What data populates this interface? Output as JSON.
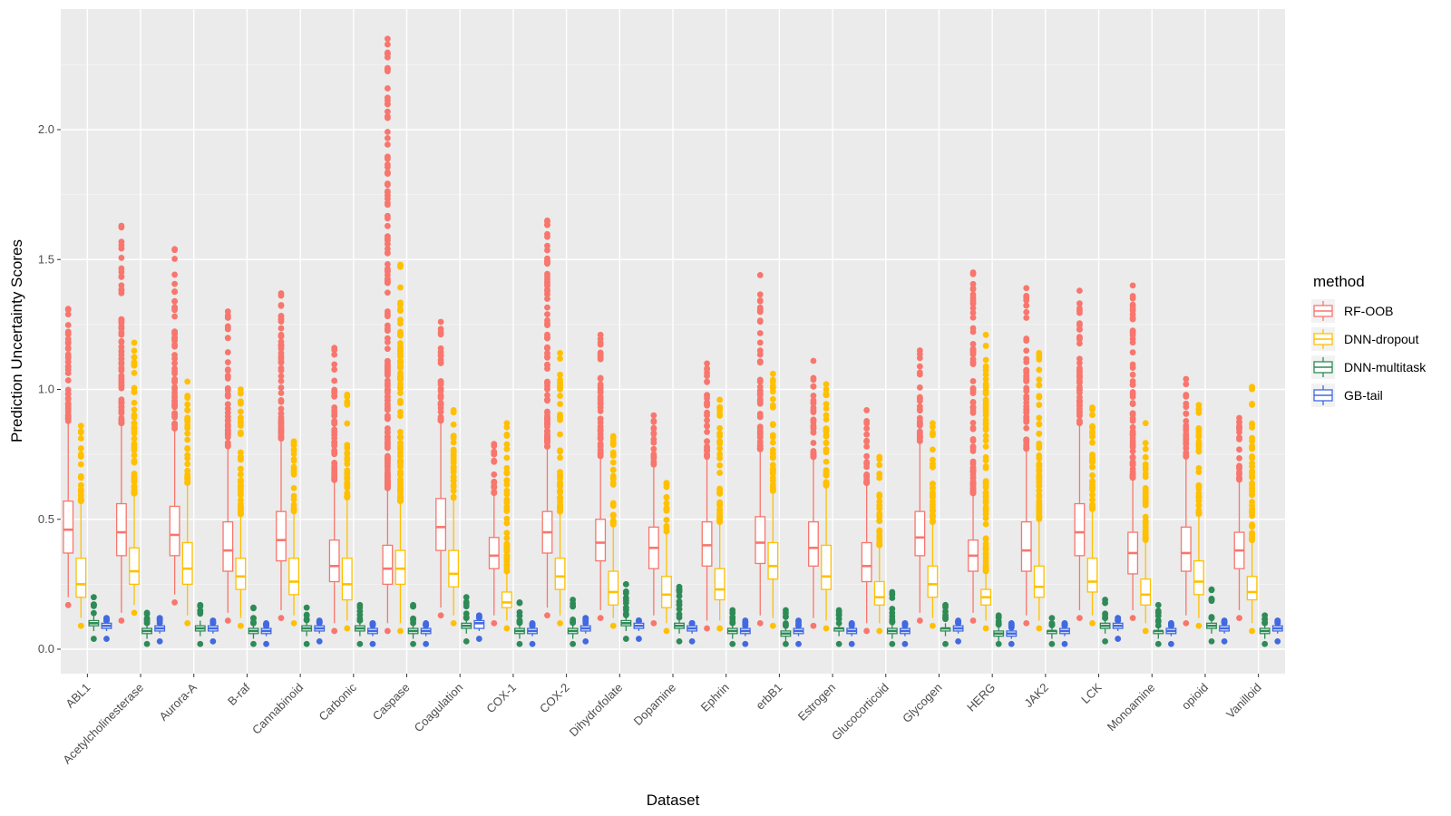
{
  "chart_data": {
    "type": "boxplot",
    "xlabel": "Dataset",
    "ylabel": "Prediction Uncertainty Scores",
    "ylim": [
      -0.1,
      2.43
    ],
    "yticks": [
      0.0,
      0.5,
      1.0,
      1.5,
      2.0
    ],
    "ytick_labels": [
      "0.0",
      "0.5",
      "1.0",
      "1.5",
      "2.0"
    ],
    "legend": {
      "title": "method",
      "position": "right"
    },
    "categories": [
      "ABL1",
      "Acetylcholinesterase",
      "Aurora-A",
      "B-raf",
      "Cannabinoid",
      "Carbonic",
      "Caspase",
      "Coagulation",
      "COX-1",
      "COX-2",
      "Dihydrofolate",
      "Dopamine",
      "Ephrin",
      "erbB1",
      "Estrogen",
      "Glucocorticoid",
      "Glycogen",
      "HERG",
      "JAK2",
      "LCK",
      "Monoamine",
      "opioid",
      "Vanilloid"
    ],
    "series": [
      {
        "name": "RF-OOB",
        "color": "#F8766D",
        "stats": [
          [
            0.2,
            0.37,
            0.46,
            0.57,
            0.87
          ],
          [
            0.14,
            0.36,
            0.45,
            0.56,
            0.87
          ],
          [
            0.21,
            0.36,
            0.44,
            0.55,
            0.85
          ],
          [
            0.14,
            0.3,
            0.38,
            0.49,
            0.78
          ],
          [
            0.15,
            0.34,
            0.42,
            0.53,
            0.81
          ],
          [
            0.1,
            0.26,
            0.32,
            0.42,
            0.65
          ],
          [
            0.1,
            0.25,
            0.31,
            0.4,
            0.62
          ],
          [
            0.16,
            0.38,
            0.47,
            0.58,
            0.88
          ],
          [
            0.13,
            0.31,
            0.36,
            0.43,
            0.6
          ],
          [
            0.16,
            0.37,
            0.45,
            0.53,
            0.78
          ],
          [
            0.15,
            0.34,
            0.41,
            0.5,
            0.74
          ],
          [
            0.13,
            0.31,
            0.39,
            0.47,
            0.71
          ],
          [
            0.11,
            0.32,
            0.4,
            0.49,
            0.74
          ],
          [
            0.13,
            0.33,
            0.41,
            0.51,
            0.77
          ],
          [
            0.12,
            0.32,
            0.39,
            0.49,
            0.74
          ],
          [
            0.1,
            0.26,
            0.32,
            0.41,
            0.64
          ],
          [
            0.14,
            0.36,
            0.43,
            0.53,
            0.8
          ],
          [
            0.14,
            0.3,
            0.36,
            0.42,
            0.6
          ],
          [
            0.13,
            0.3,
            0.38,
            0.49,
            0.77
          ],
          [
            0.15,
            0.36,
            0.45,
            0.56,
            0.87
          ],
          [
            0.15,
            0.29,
            0.37,
            0.45,
            0.66
          ],
          [
            0.13,
            0.3,
            0.37,
            0.47,
            0.74
          ],
          [
            0.15,
            0.31,
            0.38,
            0.45,
            0.65
          ]
        ],
        "outlier_max": [
          1.31,
          1.63,
          1.54,
          1.3,
          1.37,
          1.16,
          2.35,
          1.26,
          0.79,
          1.65,
          1.21,
          0.9,
          1.1,
          1.44,
          1.11,
          0.92,
          1.15,
          1.45,
          1.39,
          1.38,
          1.4,
          1.04,
          0.89
        ]
      },
      {
        "name": "DNN-dropout",
        "color": "#FFC000",
        "stats": [
          [
            0.12,
            0.2,
            0.25,
            0.35,
            0.57
          ],
          [
            0.17,
            0.25,
            0.3,
            0.39,
            0.6
          ],
          [
            0.13,
            0.25,
            0.31,
            0.41,
            0.64
          ],
          [
            0.12,
            0.23,
            0.28,
            0.35,
            0.52
          ],
          [
            0.13,
            0.21,
            0.26,
            0.35,
            0.53
          ],
          [
            0.11,
            0.19,
            0.25,
            0.35,
            0.58
          ],
          [
            0.1,
            0.25,
            0.31,
            0.38,
            0.57
          ],
          [
            0.13,
            0.24,
            0.29,
            0.38,
            0.58
          ],
          [
            0.11,
            0.16,
            0.18,
            0.22,
            0.3
          ],
          [
            0.13,
            0.23,
            0.28,
            0.35,
            0.53
          ],
          [
            0.12,
            0.17,
            0.22,
            0.3,
            0.48
          ],
          [
            0.1,
            0.16,
            0.21,
            0.28,
            0.45
          ],
          [
            0.11,
            0.19,
            0.23,
            0.31,
            0.49
          ],
          [
            0.12,
            0.27,
            0.32,
            0.41,
            0.61
          ],
          [
            0.11,
            0.23,
            0.28,
            0.4,
            0.63
          ],
          [
            0.1,
            0.17,
            0.2,
            0.26,
            0.4
          ],
          [
            0.12,
            0.2,
            0.25,
            0.32,
            0.49
          ],
          [
            0.11,
            0.17,
            0.2,
            0.23,
            0.3
          ],
          [
            0.11,
            0.2,
            0.24,
            0.32,
            0.5
          ],
          [
            0.13,
            0.22,
            0.26,
            0.35,
            0.54
          ],
          [
            0.1,
            0.17,
            0.21,
            0.27,
            0.42
          ],
          [
            0.12,
            0.21,
            0.26,
            0.34,
            0.52
          ],
          [
            0.1,
            0.19,
            0.22,
            0.28,
            0.42
          ]
        ],
        "outlier_max": [
          0.86,
          1.18,
          1.03,
          1.0,
          0.8,
          0.98,
          1.48,
          0.92,
          0.87,
          1.14,
          0.82,
          0.64,
          0.96,
          1.06,
          1.02,
          0.74,
          0.87,
          1.21,
          1.14,
          0.93,
          0.87,
          0.94,
          1.01
        ]
      },
      {
        "name": "DNN-multitask",
        "color": "#2E8B57",
        "stats": [
          [
            0.07,
            0.09,
            0.1,
            0.11,
            0.13
          ],
          [
            0.04,
            0.06,
            0.07,
            0.08,
            0.1
          ],
          [
            0.05,
            0.07,
            0.08,
            0.09,
            0.11
          ],
          [
            0.04,
            0.06,
            0.07,
            0.08,
            0.1
          ],
          [
            0.05,
            0.07,
            0.08,
            0.09,
            0.11
          ],
          [
            0.05,
            0.07,
            0.08,
            0.09,
            0.11
          ],
          [
            0.04,
            0.06,
            0.07,
            0.08,
            0.1
          ],
          [
            0.06,
            0.08,
            0.09,
            0.1,
            0.12
          ],
          [
            0.04,
            0.06,
            0.07,
            0.08,
            0.1
          ],
          [
            0.04,
            0.06,
            0.07,
            0.08,
            0.1
          ],
          [
            0.07,
            0.09,
            0.1,
            0.11,
            0.13
          ],
          [
            0.06,
            0.08,
            0.09,
            0.1,
            0.12
          ],
          [
            0.04,
            0.06,
            0.07,
            0.08,
            0.1
          ],
          [
            0.03,
            0.05,
            0.06,
            0.07,
            0.09
          ],
          [
            0.05,
            0.07,
            0.08,
            0.08,
            0.1
          ],
          [
            0.04,
            0.06,
            0.07,
            0.08,
            0.1
          ],
          [
            0.05,
            0.07,
            0.08,
            0.08,
            0.1
          ],
          [
            0.03,
            0.05,
            0.06,
            0.07,
            0.09
          ],
          [
            0.04,
            0.06,
            0.07,
            0.07,
            0.09
          ],
          [
            0.06,
            0.08,
            0.09,
            0.1,
            0.12
          ],
          [
            0.04,
            0.06,
            0.07,
            0.07,
            0.09
          ],
          [
            0.06,
            0.08,
            0.09,
            0.1,
            0.12
          ],
          [
            0.04,
            0.06,
            0.07,
            0.08,
            0.1
          ]
        ],
        "outlier_max": [
          0.2,
          0.14,
          0.17,
          0.16,
          0.16,
          0.17,
          0.17,
          0.2,
          0.18,
          0.19,
          0.25,
          0.24,
          0.15,
          0.15,
          0.15,
          0.22,
          0.17,
          0.13,
          0.12,
          0.19,
          0.17,
          0.23,
          0.13
        ]
      },
      {
        "name": "GB-tail",
        "color": "#4169E1",
        "stats": [
          [
            0.07,
            0.08,
            0.09,
            0.1,
            0.11
          ],
          [
            0.06,
            0.07,
            0.08,
            0.09,
            0.1
          ],
          [
            0.06,
            0.07,
            0.08,
            0.09,
            0.1
          ],
          [
            0.05,
            0.06,
            0.07,
            0.08,
            0.09
          ],
          [
            0.06,
            0.07,
            0.08,
            0.09,
            0.1
          ],
          [
            0.05,
            0.06,
            0.07,
            0.08,
            0.09
          ],
          [
            0.05,
            0.06,
            0.07,
            0.08,
            0.09
          ],
          [
            0.07,
            0.08,
            0.1,
            0.11,
            0.12
          ],
          [
            0.05,
            0.06,
            0.07,
            0.08,
            0.09
          ],
          [
            0.06,
            0.07,
            0.08,
            0.09,
            0.1
          ],
          [
            0.07,
            0.08,
            0.09,
            0.1,
            0.11
          ],
          [
            0.06,
            0.07,
            0.08,
            0.09,
            0.1
          ],
          [
            0.05,
            0.06,
            0.07,
            0.08,
            0.09
          ],
          [
            0.05,
            0.06,
            0.07,
            0.08,
            0.09
          ],
          [
            0.05,
            0.06,
            0.07,
            0.08,
            0.09
          ],
          [
            0.05,
            0.06,
            0.07,
            0.08,
            0.09
          ],
          [
            0.06,
            0.07,
            0.08,
            0.09,
            0.1
          ],
          [
            0.04,
            0.05,
            0.06,
            0.07,
            0.08
          ],
          [
            0.05,
            0.06,
            0.07,
            0.08,
            0.09
          ],
          [
            0.07,
            0.08,
            0.09,
            0.1,
            0.11
          ],
          [
            0.05,
            0.06,
            0.07,
            0.08,
            0.09
          ],
          [
            0.06,
            0.07,
            0.08,
            0.09,
            0.1
          ],
          [
            0.06,
            0.07,
            0.08,
            0.09,
            0.1
          ]
        ],
        "outlier_max": [
          0.12,
          0.12,
          0.11,
          0.1,
          0.11,
          0.1,
          0.1,
          0.13,
          0.1,
          0.12,
          0.11,
          0.1,
          0.11,
          0.11,
          0.1,
          0.1,
          0.11,
          0.1,
          0.1,
          0.12,
          0.1,
          0.11,
          0.11
        ]
      }
    ]
  }
}
